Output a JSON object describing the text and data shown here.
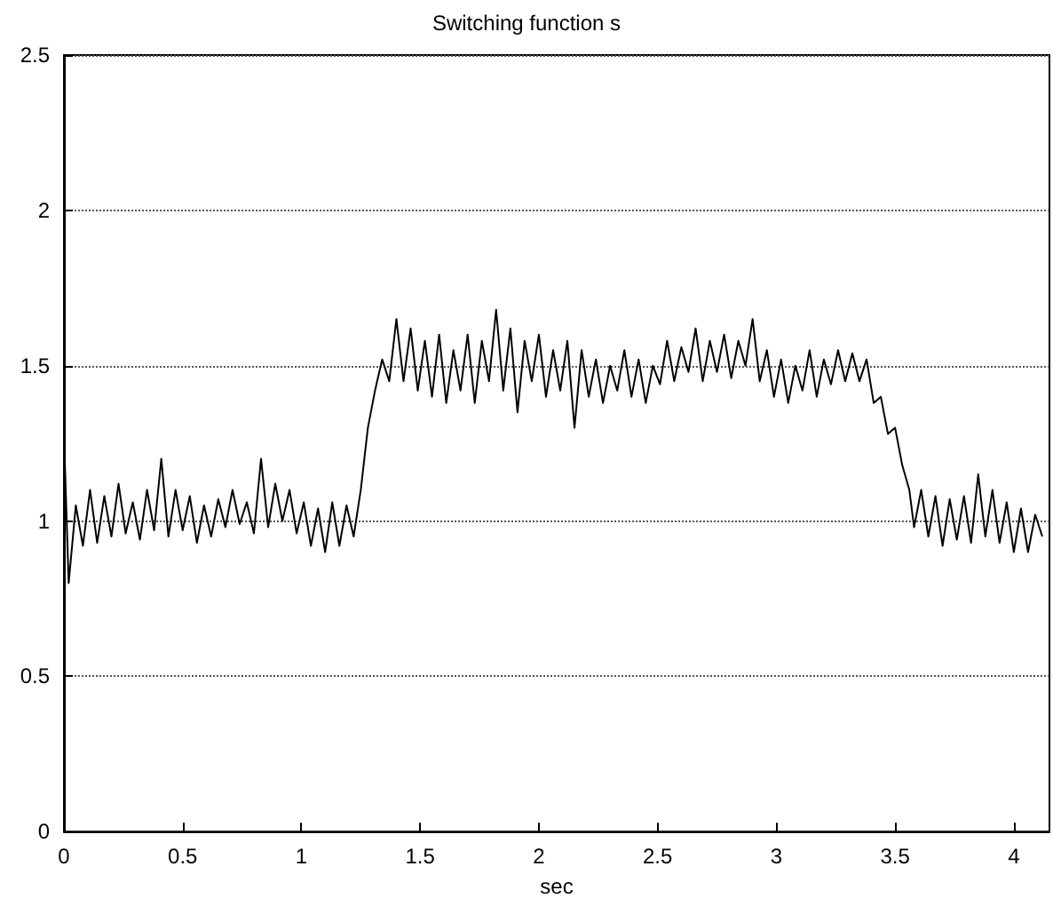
{
  "chart_data": {
    "type": "line",
    "title": "Switching function s",
    "xlabel": "sec",
    "x": [
      0,
      0.02,
      0.05,
      0.08,
      0.11,
      0.14,
      0.17,
      0.2,
      0.23,
      0.26,
      0.29,
      0.32,
      0.35,
      0.38,
      0.41,
      0.44,
      0.47,
      0.5,
      0.53,
      0.56,
      0.59,
      0.62,
      0.65,
      0.68,
      0.71,
      0.74,
      0.77,
      0.8,
      0.83,
      0.86,
      0.89,
      0.92,
      0.95,
      0.98,
      1.01,
      1.04,
      1.07,
      1.1,
      1.13,
      1.16,
      1.19,
      1.22,
      1.25,
      1.28,
      1.31,
      1.34,
      1.37,
      1.4,
      1.43,
      1.46,
      1.49,
      1.52,
      1.55,
      1.58,
      1.61,
      1.64,
      1.67,
      1.7,
      1.73,
      1.76,
      1.79,
      1.82,
      1.85,
      1.88,
      1.91,
      1.94,
      1.97,
      2.0,
      2.03,
      2.06,
      2.09,
      2.12,
      2.15,
      2.18,
      2.21,
      2.24,
      2.27,
      2.3,
      2.33,
      2.36,
      2.39,
      2.42,
      2.45,
      2.48,
      2.51,
      2.54,
      2.57,
      2.6,
      2.63,
      2.66,
      2.69,
      2.72,
      2.75,
      2.78,
      2.81,
      2.84,
      2.87,
      2.9,
      2.93,
      2.96,
      2.99,
      3.02,
      3.05,
      3.08,
      3.11,
      3.14,
      3.17,
      3.2,
      3.23,
      3.26,
      3.29,
      3.32,
      3.35,
      3.38,
      3.41,
      3.44,
      3.47,
      3.5,
      3.53,
      3.56,
      3.58,
      3.61,
      3.64,
      3.67,
      3.7,
      3.73,
      3.76,
      3.79,
      3.82,
      3.85,
      3.88,
      3.91,
      3.94,
      3.97,
      4.0,
      4.03,
      4.06,
      4.09,
      4.12
    ],
    "series": [
      {
        "color": "#000000",
        "values": [
          1.28,
          0.8,
          1.05,
          0.92,
          1.1,
          0.93,
          1.08,
          0.95,
          1.12,
          0.96,
          1.06,
          0.94,
          1.1,
          0.97,
          1.2,
          0.95,
          1.1,
          0.97,
          1.08,
          0.93,
          1.05,
          0.95,
          1.07,
          0.98,
          1.1,
          0.99,
          1.06,
          0.96,
          1.2,
          0.98,
          1.12,
          1.0,
          1.1,
          0.96,
          1.06,
          0.92,
          1.04,
          0.9,
          1.06,
          0.92,
          1.05,
          0.95,
          1.1,
          1.3,
          1.42,
          1.52,
          1.45,
          1.65,
          1.45,
          1.62,
          1.42,
          1.58,
          1.4,
          1.6,
          1.38,
          1.55,
          1.42,
          1.6,
          1.38,
          1.58,
          1.45,
          1.68,
          1.42,
          1.62,
          1.35,
          1.58,
          1.45,
          1.6,
          1.4,
          1.55,
          1.42,
          1.58,
          1.3,
          1.55,
          1.4,
          1.52,
          1.38,
          1.5,
          1.42,
          1.55,
          1.4,
          1.52,
          1.38,
          1.5,
          1.44,
          1.58,
          1.45,
          1.56,
          1.48,
          1.62,
          1.45,
          1.58,
          1.48,
          1.6,
          1.46,
          1.58,
          1.5,
          1.65,
          1.45,
          1.55,
          1.4,
          1.52,
          1.38,
          1.5,
          1.42,
          1.55,
          1.4,
          1.52,
          1.44,
          1.55,
          1.45,
          1.54,
          1.45,
          1.52,
          1.38,
          1.4,
          1.28,
          1.3,
          1.18,
          1.1,
          0.98,
          1.1,
          0.95,
          1.08,
          0.92,
          1.07,
          0.94,
          1.08,
          0.93,
          1.15,
          0.95,
          1.1,
          0.93,
          1.06,
          0.9,
          1.04,
          0.9,
          1.02,
          0.95
        ]
      }
    ],
    "xlim": [
      0,
      4.15
    ],
    "xticks": [
      0,
      0.5,
      1,
      1.5,
      2,
      2.5,
      3,
      3.5,
      4
    ],
    "ylim": [
      0,
      2.5
    ],
    "yticks": [
      0,
      0.5,
      1,
      1.5,
      2,
      2.5
    ],
    "grid": "y",
    "marker": "none",
    "line_style": "solid"
  }
}
